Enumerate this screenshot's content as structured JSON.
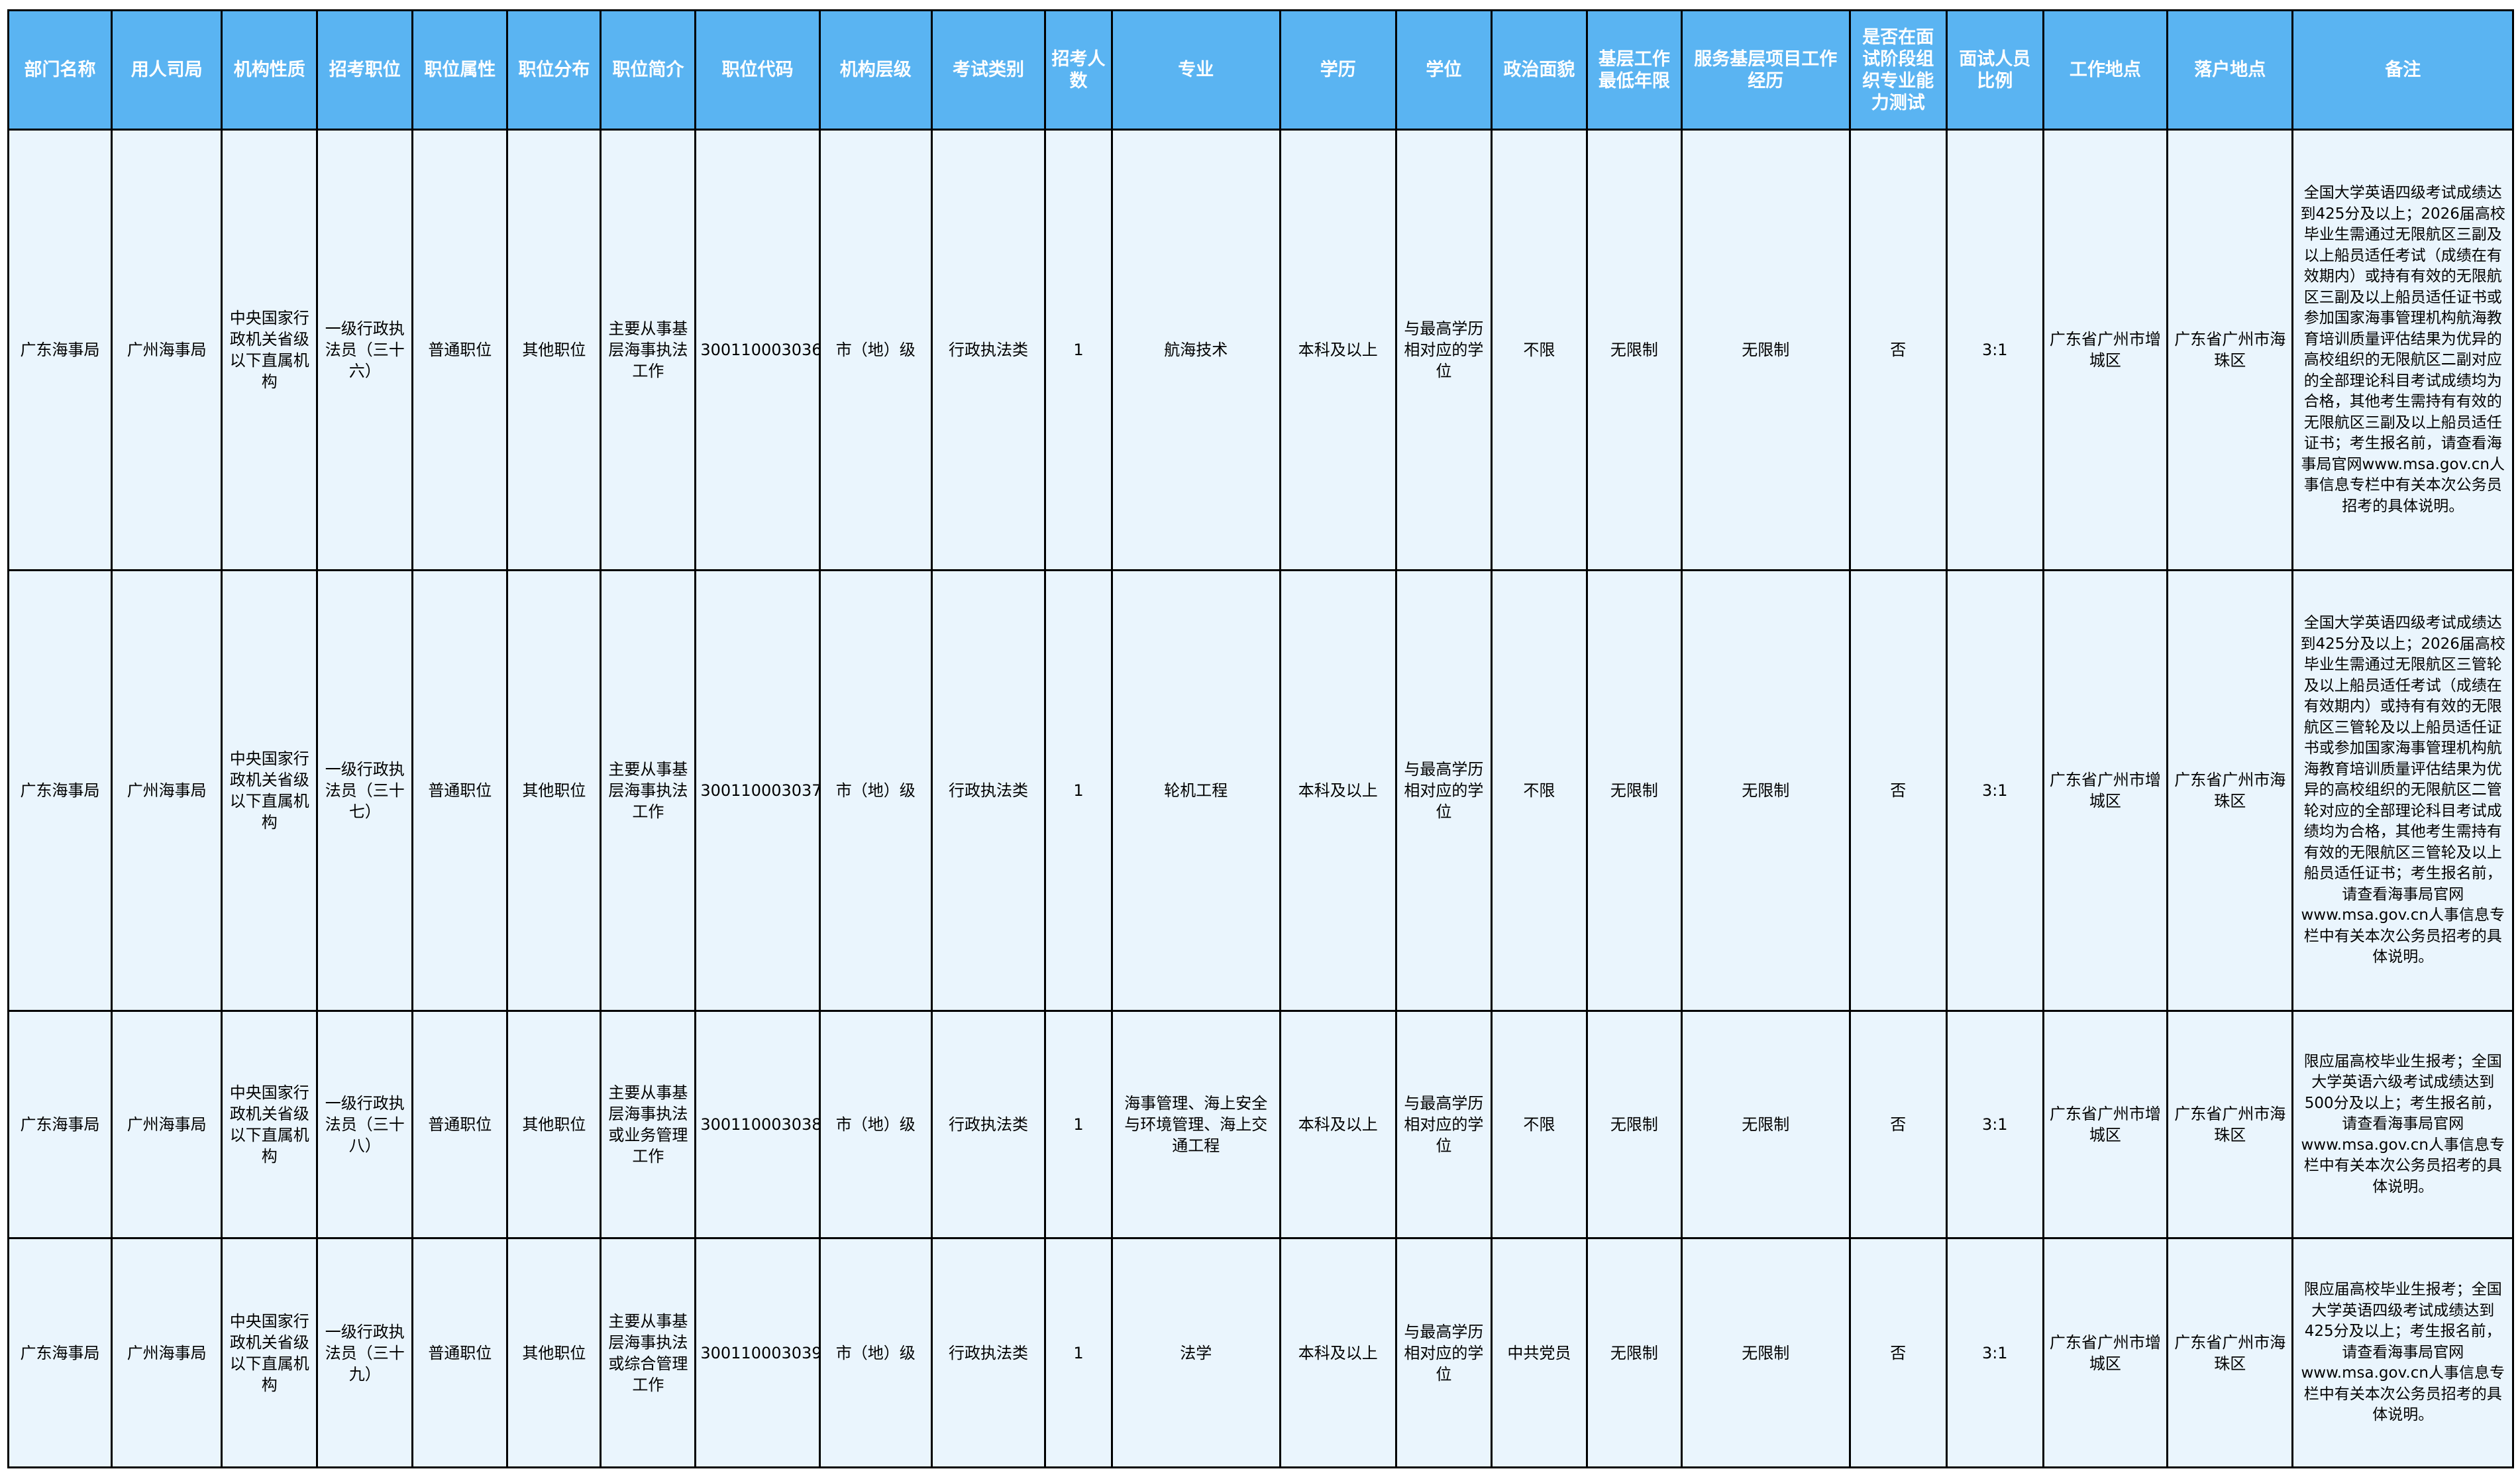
{
  "columns": [
    "部门名称",
    "用人司局",
    "机构性质",
    "招考职位",
    "职位属性",
    "职位分布",
    "职位简介",
    "职位代码",
    "机构层级",
    "考试类别",
    "招考人数",
    "专业",
    "学历",
    "学位",
    "政治面貌",
    "基层工作最低年限",
    "服务基层项目工作经历",
    "是否在面试阶段组织专业能力测试",
    "面试人员比例",
    "工作地点",
    "落户地点",
    "备注"
  ],
  "rows": [
    {
      "dept": "广东海事局",
      "bureau": "广州海事局",
      "org_type": "中央国家行政机关省级以下直属机构",
      "position": "一级行政执法员（三十六）",
      "attr": "普通职位",
      "dist": "其他职位",
      "desc": "主要从事基层海事执法工作",
      "code": "300110003036",
      "level": "市（地）级",
      "exam": "行政执法类",
      "count": "1",
      "major": "航海技术",
      "edu": "本科及以上",
      "degree": "与最高学历相对应的学位",
      "political": "不限",
      "years": "无限制",
      "project": "无限制",
      "test": "否",
      "ratio": "3:1",
      "workplace": "广东省广州市增城区",
      "hukou": "广东省广州市海珠区",
      "note": "全国大学英语四级考试成绩达到425分及以上；2026届高校毕业生需通过无限航区三副及以上船员适任考试（成绩在有效期内）或持有有效的无限航区三副及以上船员适任证书或参加国家海事管理机构航海教育培训质量评估结果为优异的高校组织的无限航区二副对应的全部理论科目考试成绩均为合格，其他考生需持有有效的无限航区三副及以上船员适任证书；考生报名前，请查看海事局官网www.msa.gov.cn人事信息专栏中有关本次公务员招考的具体说明。"
    },
    {
      "dept": "广东海事局",
      "bureau": "广州海事局",
      "org_type": "中央国家行政机关省级以下直属机构",
      "position": "一级行政执法员（三十七）",
      "attr": "普通职位",
      "dist": "其他职位",
      "desc": "主要从事基层海事执法工作",
      "code": "300110003037",
      "level": "市（地）级",
      "exam": "行政执法类",
      "count": "1",
      "major": "轮机工程",
      "edu": "本科及以上",
      "degree": "与最高学历相对应的学位",
      "political": "不限",
      "years": "无限制",
      "project": "无限制",
      "test": "否",
      "ratio": "3:1",
      "workplace": "广东省广州市增城区",
      "hukou": "广东省广州市海珠区",
      "note": "全国大学英语四级考试成绩达到425分及以上；2026届高校毕业生需通过无限航区三管轮及以上船员适任考试（成绩在有效期内）或持有有效的无限航区三管轮及以上船员适任证书或参加国家海事管理机构航海教育培训质量评估结果为优异的高校组织的无限航区二管轮对应的全部理论科目考试成绩均为合格，其他考生需持有有效的无限航区三管轮及以上船员适任证书；考生报名前，请查看海事局官网www.msa.gov.cn人事信息专栏中有关本次公务员招考的具体说明。"
    },
    {
      "dept": "广东海事局",
      "bureau": "广州海事局",
      "org_type": "中央国家行政机关省级以下直属机构",
      "position": "一级行政执法员（三十八）",
      "attr": "普通职位",
      "dist": "其他职位",
      "desc": "主要从事基层海事执法或业务管理工作",
      "code": "300110003038",
      "level": "市（地）级",
      "exam": "行政执法类",
      "count": "1",
      "major": "海事管理、海上安全与环境管理、海上交通工程",
      "edu": "本科及以上",
      "degree": "与最高学历相对应的学位",
      "political": "不限",
      "years": "无限制",
      "project": "无限制",
      "test": "否",
      "ratio": "3:1",
      "workplace": "广东省广州市增城区",
      "hukou": "广东省广州市海珠区",
      "note": "限应届高校毕业生报考；全国大学英语六级考试成绩达到500分及以上；考生报名前，请查看海事局官网www.msa.gov.cn人事信息专栏中有关本次公务员招考的具体说明。"
    },
    {
      "dept": "广东海事局",
      "bureau": "广州海事局",
      "org_type": "中央国家行政机关省级以下直属机构",
      "position": "一级行政执法员（三十九）",
      "attr": "普通职位",
      "dist": "其他职位",
      "desc": "主要从事基层海事执法或综合管理工作",
      "code": "300110003039",
      "level": "市（地）级",
      "exam": "行政执法类",
      "count": "1",
      "major": "法学",
      "edu": "本科及以上",
      "degree": "与最高学历相对应的学位",
      "political": "中共党员",
      "years": "无限制",
      "project": "无限制",
      "test": "否",
      "ratio": "3:1",
      "workplace": "广东省广州市增城区",
      "hukou": "广东省广州市海珠区",
      "note": "限应届高校毕业生报考；全国大学英语四级考试成绩达到425分及以上；考生报名前，请查看海事局官网www.msa.gov.cn人事信息专栏中有关本次公务员招考的具体说明。"
    }
  ]
}
